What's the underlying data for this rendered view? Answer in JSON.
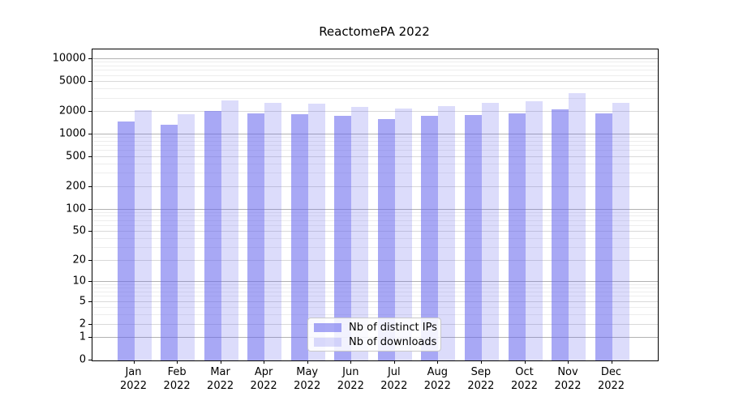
{
  "title": "ReactomePA 2022",
  "legend": {
    "items": [
      {
        "label": "Nb of distinct IPs",
        "color_key": "distinct_ips"
      },
      {
        "label": "Nb of downloads",
        "color_key": "downloads"
      }
    ]
  },
  "colors": {
    "distinct_ips": "rgba(102,102,238,0.57)",
    "downloads": "rgba(102,102,238,0.23)",
    "grid_major": "#b2b2b2",
    "grid_mid": "#d9d9d9",
    "grid_minor": "#ededed",
    "spine": "#000000",
    "text": "#000000"
  },
  "chart_data": {
    "type": "bar",
    "title": "ReactomePA 2022",
    "categories": [
      "Jan 2022",
      "Feb 2022",
      "Mar 2022",
      "Apr 2022",
      "May 2022",
      "Jun 2022",
      "Jul 2022",
      "Aug 2022",
      "Sep 2022",
      "Oct 2022",
      "Nov 2022",
      "Dec 2022"
    ],
    "series": [
      {
        "name": "Nb of distinct IPs",
        "key": "distinct_ips",
        "values": [
          1500,
          1350,
          2050,
          1900,
          1850,
          1750,
          1600,
          1750,
          1800,
          1900,
          2150,
          1900
        ]
      },
      {
        "name": "Nb of downloads",
        "key": "downloads",
        "values": [
          2100,
          1850,
          2850,
          2600,
          2550,
          2300,
          2200,
          2400,
          2600,
          2750,
          3500,
          2600
        ]
      }
    ],
    "xlabel": "",
    "ylabel": "",
    "yscale": "log1p",
    "ylim": [
      0,
      13400
    ],
    "yticks": [
      10000,
      5000,
      2000,
      1000,
      500,
      200,
      100,
      50,
      20,
      10,
      5,
      2,
      1,
      0
    ],
    "grid": "both",
    "legend_position": "lower center"
  }
}
